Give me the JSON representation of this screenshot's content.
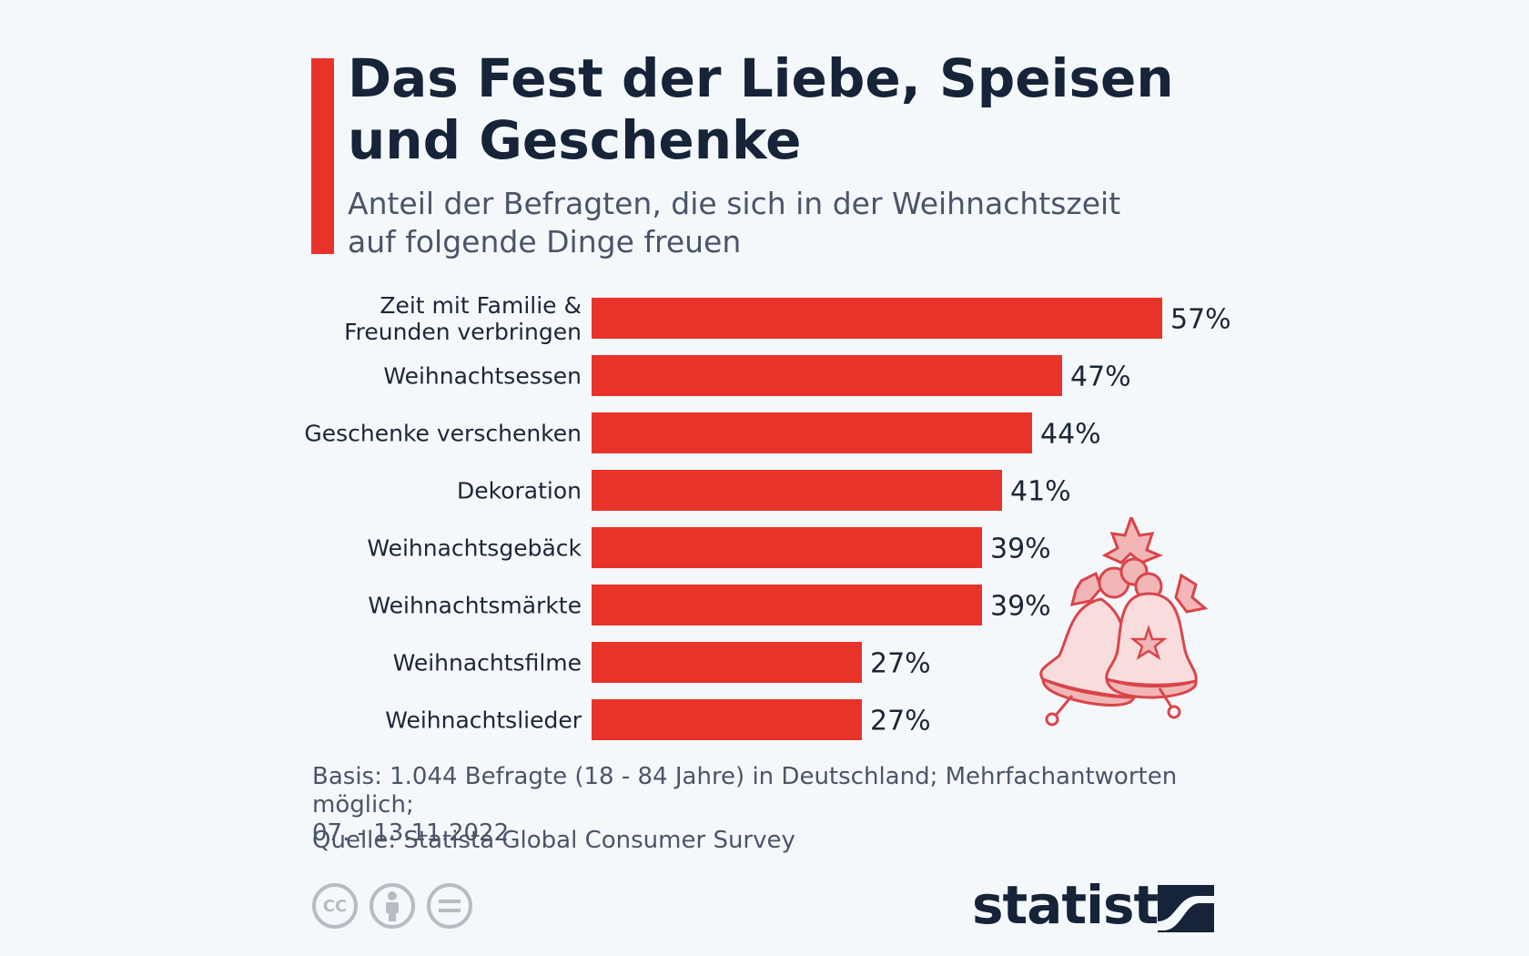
{
  "header": {
    "title_line1": "Das Fest der Liebe, Speisen",
    "title_line2": "und Geschenke",
    "subtitle_line1": "Anteil der Befragten, die sich in der Weihnachtszeit",
    "subtitle_line2": "auf folgende Dinge freuen"
  },
  "colors": {
    "accent": "#e8332a",
    "bar": "#e8332a",
    "title": "#162338",
    "text": "#1c2635",
    "muted": "#4a5568",
    "background": "#f4f8fb"
  },
  "chart_data": {
    "type": "bar",
    "orientation": "horizontal",
    "categories": [
      [
        "Zeit mit Familie &",
        "Freunden verbringen"
      ],
      [
        "Weihnachtsessen"
      ],
      [
        "Geschenke verschenken"
      ],
      [
        "Dekoration"
      ],
      [
        "Weihnachtsgebäck"
      ],
      [
        "Weihnachtsmärkte"
      ],
      [
        "Weihnachtsfilme"
      ],
      [
        "Weihnachtslieder"
      ]
    ],
    "values": [
      57,
      47,
      44,
      41,
      39,
      39,
      27,
      27
    ],
    "labels": [
      "57%",
      "47%",
      "44%",
      "41%",
      "39%",
      "39%",
      "27%",
      "27%"
    ],
    "unit": "%",
    "xlim": [
      0,
      57
    ],
    "grid": false,
    "legend": "none"
  },
  "footer": {
    "basis_line1": "Basis: 1.044 Befragte (18 - 84 Jahre) in Deutschland; Mehrfachantworten möglich;",
    "basis_line2": "07. - 13.11.2022",
    "source": "Quelle: Statista Global Consumer Survey",
    "brand": "statista",
    "license_icons": [
      "cc-icon",
      "attribution-icon",
      "no-derivatives-icon"
    ],
    "license_cc_text": "CC"
  },
  "decoration": {
    "icon": "christmas-bells-icon"
  }
}
